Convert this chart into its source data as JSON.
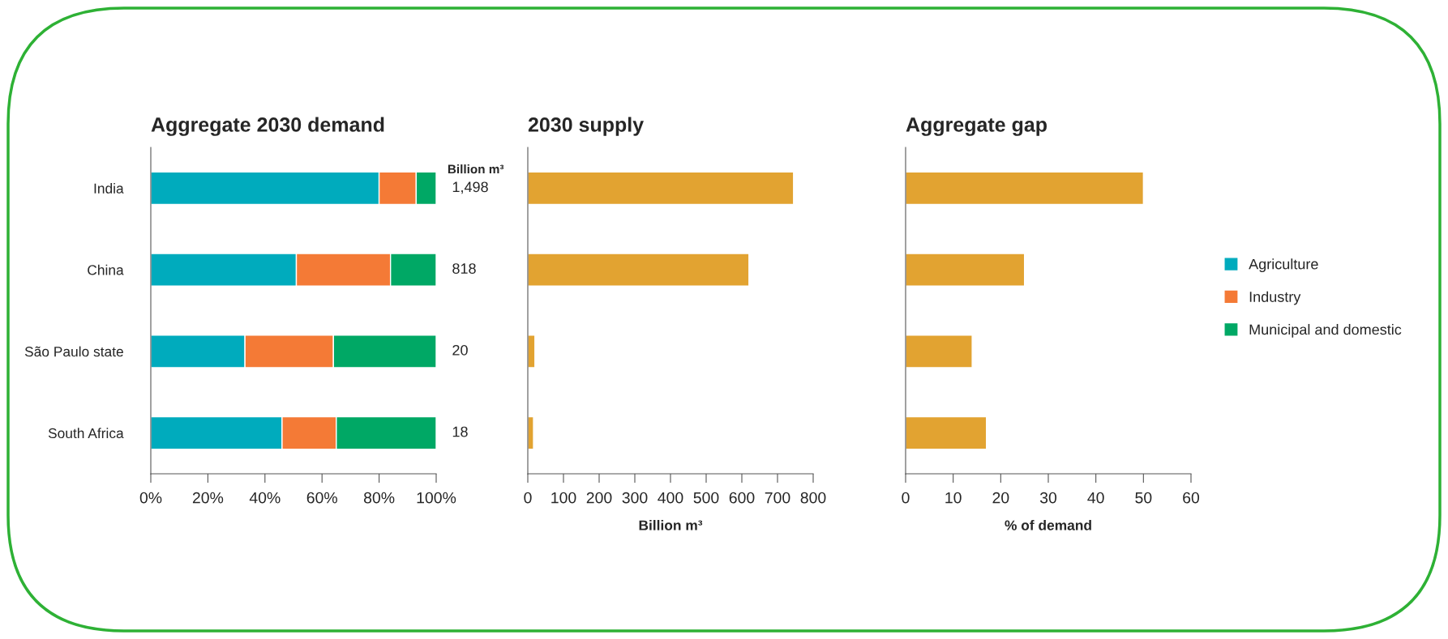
{
  "chart_data": [
    {
      "type": "bar",
      "title": "Aggregate 2030 demand",
      "orientation": "horizontal",
      "stacked": true,
      "categories": [
        "India",
        "China",
        "São Paulo state",
        "South Africa"
      ],
      "series": [
        {
          "name": "Agriculture",
          "color": "#00abbd",
          "values": [
            80,
            51,
            33,
            46
          ]
        },
        {
          "name": "Industry",
          "color": "#f47a36",
          "values": [
            13,
            33,
            31,
            19
          ]
        },
        {
          "name": "Municipal and domestic",
          "color": "#00a865",
          "values": [
            7,
            16,
            36,
            35
          ]
        }
      ],
      "xlim": [
        0,
        100
      ],
      "xticks": [
        {
          "value": 0,
          "label": "0%"
        },
        {
          "value": 20,
          "label": "20%"
        },
        {
          "value": 40,
          "label": "40%"
        },
        {
          "value": 60,
          "label": "60%"
        },
        {
          "value": 80,
          "label": "80%"
        },
        {
          "value": 100,
          "label": "100%"
        }
      ],
      "annotations": [
        "Billion m³",
        "1,498",
        "818",
        "20",
        "18"
      ],
      "legend": "right",
      "grid": false
    },
    {
      "type": "bar",
      "title": "2030 supply",
      "orientation": "horizontal",
      "categories": [
        null,
        null,
        null,
        null
      ],
      "series": [
        {
          "color": "#e2a331",
          "values": [
            745,
            620,
            20,
            16
          ]
        }
      ],
      "xlim": [
        0,
        800
      ],
      "xticks": [
        0,
        100,
        200,
        300,
        400,
        500,
        600,
        700,
        800
      ],
      "xlabel": "Billion m³",
      "tick_labels": "x",
      "grid": false
    },
    {
      "type": "bar",
      "title": "Aggregate gap",
      "orientation": "horizontal",
      "categories": [
        null,
        null,
        null,
        null
      ],
      "series": [
        {
          "color": "#e2a331",
          "values": [
            50,
            25,
            14,
            17
          ]
        }
      ],
      "xlim": [
        0,
        60
      ],
      "xticks": [
        0,
        10,
        20,
        30,
        40,
        50,
        60
      ],
      "xlabel": "% of demand",
      "tick_labels": "x",
      "grid": false
    }
  ]
}
